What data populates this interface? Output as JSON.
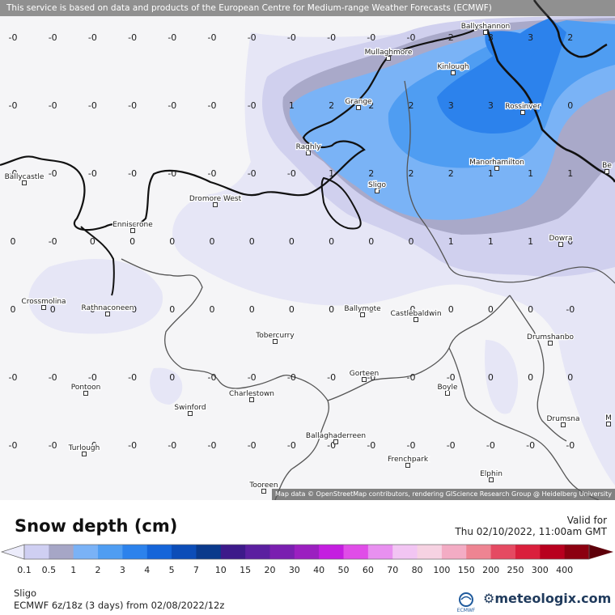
{
  "header": {
    "disclaimer": "This service is based on data and products of the European Centre for Medium-range Weather Forecasts (ECMWF)"
  },
  "map": {
    "attribution": "Map data © OpenStreetMap contributors, rendering GIScience Research Group @ Heidelberg University",
    "places": [
      {
        "name": "Ballyshannon"
      },
      {
        "name": "Mullaghmore"
      },
      {
        "name": "Kinlough"
      },
      {
        "name": "Grange"
      },
      {
        "name": "Rossinver"
      },
      {
        "name": "Raghly"
      },
      {
        "name": "Manorhamilton"
      },
      {
        "name": "Ballycastle"
      },
      {
        "name": "Sligo"
      },
      {
        "name": "Dromore West"
      },
      {
        "name": "Enniscrone"
      },
      {
        "name": "Dowra"
      },
      {
        "name": "Crossmolina"
      },
      {
        "name": "Rathnaconeen"
      },
      {
        "name": "Ballymote"
      },
      {
        "name": "Castlebaldwin"
      },
      {
        "name": "Tobercurry"
      },
      {
        "name": "Drumshanbo"
      },
      {
        "name": "Gorteen"
      },
      {
        "name": "Pontoon"
      },
      {
        "name": "Boyle"
      },
      {
        "name": "Charlestown"
      },
      {
        "name": "Swinford"
      },
      {
        "name": "Drumsna"
      },
      {
        "name": "Ballaghaderreen"
      },
      {
        "name": "Turlough"
      },
      {
        "name": "Frenchpark"
      },
      {
        "name": "Elphin"
      },
      {
        "name": "Tooreen"
      },
      {
        "name": "Be"
      },
      {
        "name": "M"
      }
    ],
    "grid_values": [
      [
        "-0",
        "-0",
        "-0",
        "-0",
        "-0",
        "-0",
        "-0",
        "-0",
        "-0",
        "-0",
        "-0",
        "2",
        "3",
        "3",
        "2"
      ],
      [
        "-0",
        "-0",
        "-0",
        "-0",
        "-0",
        "-0",
        "-0",
        "1",
        "2",
        "2",
        "2",
        "3",
        "3",
        "1",
        "0"
      ],
      [
        "-0",
        "-0",
        "-0",
        "-0",
        "-0",
        "-0",
        "-0",
        "-0",
        "1",
        "2",
        "2",
        "2",
        "1",
        "1",
        "1"
      ],
      [
        "0",
        "-0",
        "0",
        "0",
        "0",
        "0",
        "0",
        "0",
        "0",
        "0",
        "0",
        "1",
        "1",
        "1",
        "0"
      ],
      [
        "0",
        "0",
        "0",
        "-0",
        "0",
        "0",
        "0",
        "0",
        "0",
        "0",
        "-0",
        "0",
        "0",
        "0",
        "-0"
      ],
      [
        "-0",
        "-0",
        "-0",
        "-0",
        "0",
        "-0",
        "-0",
        "-0",
        "-0",
        "-0",
        "-0",
        "-0",
        "0",
        "0",
        "0"
      ],
      [
        "-0",
        "-0",
        "-0",
        "-0",
        "-0",
        "-0",
        "-0",
        "-0",
        "-0",
        "-0",
        "-0",
        "-0",
        "-0",
        "-0",
        "-0"
      ]
    ]
  },
  "legend": {
    "title": "Snow depth (cm)",
    "valid_for_label": "Valid for",
    "valid_time": "Thu 02/10/2022, 11:00am GMT",
    "labels": [
      "0.1",
      "0.5",
      "1",
      "2",
      "3",
      "4",
      "5",
      "7",
      "10",
      "15",
      "20",
      "30",
      "40",
      "50",
      "60",
      "70",
      "80",
      "100",
      "150",
      "200",
      "250",
      "300",
      "400"
    ],
    "colors": [
      "#ececfb",
      "#cfcff2",
      "#a6a6c6",
      "#7ab2f6",
      "#4f9df2",
      "#2c82ec",
      "#1565d9",
      "#0c4db8",
      "#0a3a8c",
      "#3d1a8a",
      "#5b1fa0",
      "#7a1fb0",
      "#9b1fc0",
      "#c41ee0",
      "#e04de8",
      "#e890f0",
      "#f2c5f3",
      "#f6d2e2",
      "#f3acc4",
      "#ee8492",
      "#e54a62",
      "#da1f3c",
      "#b8001e",
      "#8c0010",
      "#5e000a"
    ]
  },
  "footer": {
    "location": "Sligo",
    "model": "ECMWF 6z/18z (3 days) from 02/08/2022/12z",
    "brand": "meteologix.com",
    "ecmwf_label": "ECMWF"
  }
}
